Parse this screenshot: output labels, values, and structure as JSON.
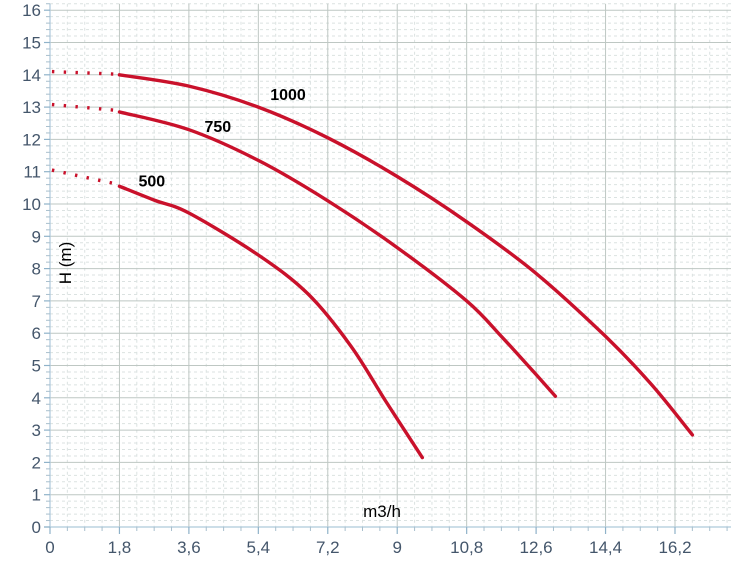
{
  "chart_data": {
    "type": "line",
    "title": "",
    "xlabel": "m3/h",
    "ylabel": "H (m)",
    "xlim": [
      0,
      17.65
    ],
    "ylim": [
      0,
      16.2
    ],
    "x_major_step": 1.8,
    "x_minor_step": 0.45,
    "y_major_step": 1,
    "y_minor_step": 0.2,
    "grid": "major solid + minor dashed",
    "legend_position": "inline-curve-labels",
    "x_ticks": [
      {
        "v": 0,
        "label": "0"
      },
      {
        "v": 1.8,
        "label": "1,8"
      },
      {
        "v": 3.6,
        "label": "3,6"
      },
      {
        "v": 5.4,
        "label": "5,4"
      },
      {
        "v": 7.2,
        "label": "7,2"
      },
      {
        "v": 9,
        "label": "9"
      },
      {
        "v": 10.8,
        "label": "10,8"
      },
      {
        "v": 12.6,
        "label": "12,6"
      },
      {
        "v": 14.4,
        "label": "14,4"
      },
      {
        "v": 16.2,
        "label": "16,2"
      }
    ],
    "y_ticks": [
      0,
      1,
      2,
      3,
      4,
      5,
      6,
      7,
      8,
      9,
      10,
      11,
      12,
      13,
      14,
      15,
      16
    ],
    "series": [
      {
        "name": "500",
        "label": "500",
        "label_at": [
          2.64,
          10.72
        ],
        "dotted": [
          [
            0.05,
            11.05
          ],
          [
            1.72,
            10.62
          ]
        ],
        "solid": [
          [
            1.8,
            10.55
          ],
          [
            2.7,
            10.12
          ],
          [
            3.6,
            9.72
          ],
          [
            5.4,
            8.42
          ],
          [
            6.7,
            7.2
          ],
          [
            7.8,
            5.6
          ],
          [
            8.7,
            3.9
          ],
          [
            9.65,
            2.15
          ]
        ]
      },
      {
        "name": "750",
        "label": "750",
        "label_at": [
          4.35,
          12.42
        ],
        "dotted": [
          [
            0.05,
            13.08
          ],
          [
            1.72,
            12.9
          ]
        ],
        "solid": [
          [
            1.8,
            12.85
          ],
          [
            3.6,
            12.3
          ],
          [
            5.4,
            11.35
          ],
          [
            7.2,
            10.1
          ],
          [
            9.0,
            8.65
          ],
          [
            10.8,
            7.0
          ],
          [
            11.7,
            5.9
          ],
          [
            12.5,
            4.85
          ],
          [
            13.1,
            4.05
          ]
        ]
      },
      {
        "name": "1000",
        "label": "1000",
        "label_at": [
          6.17,
          13.4
        ],
        "dotted": [
          [
            0.05,
            14.1
          ],
          [
            1.72,
            14.02
          ]
        ],
        "solid": [
          [
            1.8,
            14.0
          ],
          [
            3.6,
            13.65
          ],
          [
            5.4,
            13.0
          ],
          [
            7.2,
            12.05
          ],
          [
            9.0,
            10.85
          ],
          [
            10.8,
            9.45
          ],
          [
            12.6,
            7.85
          ],
          [
            14.4,
            5.9
          ],
          [
            15.6,
            4.4
          ],
          [
            16.65,
            2.85
          ]
        ]
      }
    ],
    "colors": {
      "curve": "#c9112b",
      "tick_label": "#44566b",
      "axis_line": "#aec9db",
      "tick_major": "#8fb2c9",
      "tick_minor": "#a8bfcd",
      "grid_major": "#bec7c3",
      "grid_minor": "#dbe2e1",
      "axis_title": "#000000",
      "curve_label": "#000000",
      "background": "#ffffff"
    }
  }
}
